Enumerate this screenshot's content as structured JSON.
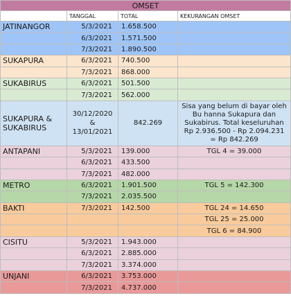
{
  "sheet": {
    "title": "OMSET",
    "headers": [
      "",
      "TANGGAL",
      "TOTAL",
      "KEKURANGAN OMSET"
    ],
    "groups": [
      {
        "name": "JATINANGOR",
        "color": "#9fc5f8",
        "rows": [
          {
            "tanggal": "5/3/2021",
            "total": "1.658.500",
            "note": ""
          },
          {
            "tanggal": "6/3/2021",
            "total": "1.571.500",
            "note": ""
          },
          {
            "tanggal": "7/3/2021",
            "total": "1.890.500",
            "note": ""
          }
        ]
      },
      {
        "name": "SUKAPURA",
        "color": "#fce5cd",
        "rows": [
          {
            "tanggal": "6/3/2021",
            "total": "740.500",
            "note": ""
          },
          {
            "tanggal": "7/3/2021",
            "total": "868.000",
            "note": ""
          }
        ]
      },
      {
        "name": "SUKABIRUS",
        "color": "#d9ead3",
        "rows": [
          {
            "tanggal": "6/3/2021",
            "total": "501.500",
            "note": ""
          },
          {
            "tanggal": "7/3/2021",
            "total": "562.000",
            "note": ""
          }
        ]
      },
      {
        "name": "SUKAPURA & SUKABIRUS",
        "color": "#cfe2f3",
        "tanggal": "30/12/2020 & 13/01/2021",
        "total": "842.269",
        "note": "Sisa yang belum di bayar oleh Bu hanna Sukapura dan Sukabirus. Total keseluruhan Rp 2.936.500 - Rp 2.094.231 = Rp 842.269"
      },
      {
        "name": "ANTAPANI",
        "color": "#ead1dc",
        "rows": [
          {
            "tanggal": "5/3/2021",
            "total": "139.000",
            "note": "TGL 4 = 39.000"
          },
          {
            "tanggal": "6/3/2021",
            "total": "433.500",
            "note": ""
          },
          {
            "tanggal": "7/3/2021",
            "total": "482.000",
            "note": ""
          }
        ]
      },
      {
        "name": "METRO",
        "color": "#b6d7a8",
        "rows": [
          {
            "tanggal": "6/3/2021",
            "total": "1.901.500",
            "note": "TGL 5 = 142.300"
          },
          {
            "tanggal": "7/3/2021",
            "total": "2.035.500",
            "note": ""
          }
        ]
      },
      {
        "name": "BAKTI",
        "color": "#f9cb9c",
        "rows": [
          {
            "tanggal": "7/3/2021",
            "total": "142.500",
            "note": "TGL 24 = 14.650"
          },
          {
            "tanggal": "",
            "total": "",
            "note": "TGL 25 = 25.000"
          },
          {
            "tanggal": "",
            "total": "",
            "note": "TGL 6 = 84.900"
          }
        ]
      },
      {
        "name": "CISITU",
        "color": "#ead1dc",
        "rows": [
          {
            "tanggal": "5/3/2021",
            "total": "1.943.000",
            "note": ""
          },
          {
            "tanggal": "6/3/2021",
            "total": "2.885.000",
            "note": ""
          },
          {
            "tanggal": "7/3/2021",
            "total": "3.374.000",
            "note": ""
          }
        ]
      },
      {
        "name": "UNJANI",
        "color": "#ea9999",
        "rows": [
          {
            "tanggal": "6/3/2021",
            "total": "3.753.000",
            "note": ""
          },
          {
            "tanggal": "7/3/2021",
            "total": "4.737.000",
            "note": ""
          }
        ]
      }
    ]
  }
}
